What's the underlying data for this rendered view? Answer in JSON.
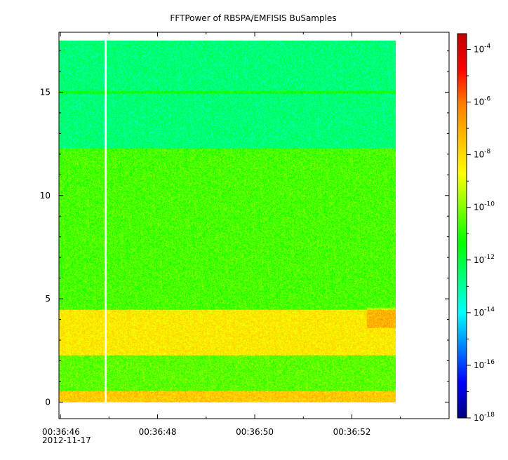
{
  "chart_data": {
    "type": "heatmap",
    "title": "FFTPower of RBSPA/EMFISIS  BuSamples",
    "xlabel": "",
    "ylabel": "",
    "x_ticks": [
      "00:36:46",
      "00:36:48",
      "00:36:50",
      "00:36:52"
    ],
    "x_sub_label": "2012-11-17",
    "x_range_s": [
      45.97,
      54.0
    ],
    "x_tick_s": [
      46,
      48,
      50,
      52
    ],
    "x_minor_step_s": 1,
    "data_x_range_s": [
      45.97,
      52.9
    ],
    "gap_x_s": 46.93,
    "ylim": [
      -0.8,
      17.9
    ],
    "y_ticks": [
      0,
      5,
      10,
      15
    ],
    "data_y_range": [
      0,
      17.5
    ],
    "color_scale": "log",
    "colorbar_range_exp": [
      -18,
      -3.4
    ],
    "colorbar_ticks": [
      {
        "base": "10",
        "exp": "-4",
        "value": -4
      },
      {
        "base": "10",
        "exp": "-6",
        "value": -6
      },
      {
        "base": "10",
        "exp": "-8",
        "value": -8
      },
      {
        "base": "10",
        "exp": "-10",
        "value": -10
      },
      {
        "base": "10",
        "exp": "-12",
        "value": -12
      },
      {
        "base": "10",
        "exp": "-14",
        "value": -14
      },
      {
        "base": "10",
        "exp": "-16",
        "value": -16
      },
      {
        "base": "10",
        "exp": "-18",
        "value": -18
      }
    ],
    "colormap": [
      "#00007f",
      "#0000ff",
      "#007fff",
      "#00ffff",
      "#00ff7f",
      "#00ff00",
      "#7fff00",
      "#ffff00",
      "#ffbf00",
      "#ff7f00",
      "#ff0000",
      "#bf0000"
    ],
    "bands": [
      {
        "y0": 12.3,
        "y1": 17.5,
        "log_power": -12.6
      },
      {
        "y0": 4.5,
        "y1": 12.3,
        "log_power": -10.6
      },
      {
        "y0": 2.3,
        "y1": 4.5,
        "log_power": -8.3
      },
      {
        "y0": 0.55,
        "y1": 2.3,
        "log_power": -10.4
      },
      {
        "y0": 0.0,
        "y1": 0.55,
        "log_power": -7.6
      }
    ],
    "line_feature": {
      "y": 15.0,
      "log_power": -11.3
    }
  }
}
